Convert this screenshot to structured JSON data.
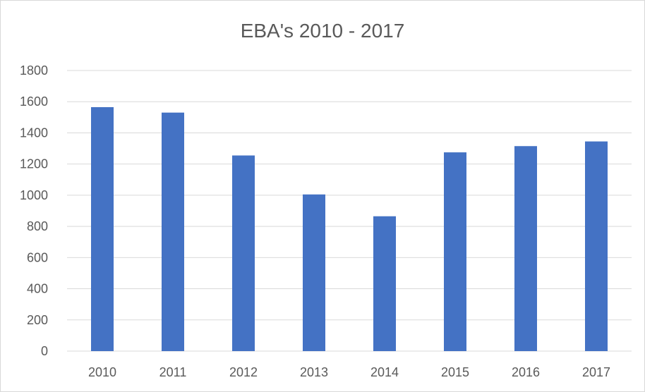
{
  "chart_data": {
    "type": "bar",
    "title": "EBA's 2010 - 2017",
    "xlabel": "",
    "ylabel": "",
    "categories": [
      "2010",
      "2011",
      "2012",
      "2013",
      "2014",
      "2015",
      "2016",
      "2017"
    ],
    "series": [
      {
        "values": [
          1565,
          1530,
          1255,
          1005,
          865,
          1275,
          1315,
          1345
        ]
      }
    ],
    "ylim": [
      0,
      1800
    ],
    "yticks": [
      "0",
      "200",
      "400",
      "600",
      "800",
      "1000",
      "1200",
      "1400",
      "1600",
      "1800"
    ],
    "grid": true,
    "legend": "none",
    "bar_color": "#4472c4",
    "grid_color": "#d9d9d9"
  }
}
